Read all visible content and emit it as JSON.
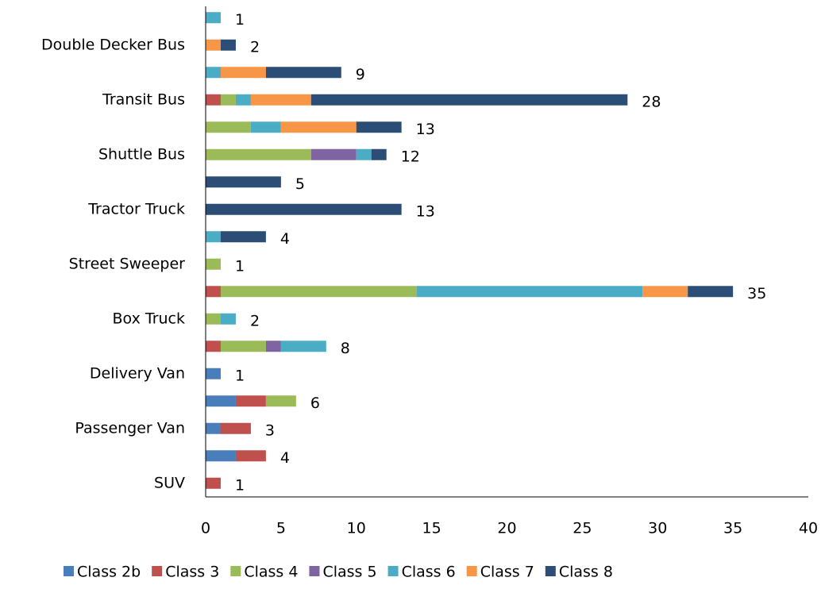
{
  "chart_data": {
    "type": "stacked_bar_horizontal",
    "categories": [
      "SUV",
      null,
      "Passenger Van",
      null,
      "Delivery Van",
      null,
      "Box Truck",
      null,
      "Street Sweeper",
      null,
      "Tractor Truck",
      null,
      "Shuttle Bus",
      null,
      "Transit Bus",
      null,
      "Double Decker Bus",
      null
    ],
    "series": [
      {
        "name": "Class 2b",
        "color": "#4a7ebb",
        "values": [
          0,
          2,
          1,
          2,
          1,
          0,
          0,
          0,
          0,
          0,
          0,
          0,
          0,
          0,
          0,
          0,
          0,
          0
        ]
      },
      {
        "name": "Class 3",
        "color": "#c0504d",
        "values": [
          1,
          2,
          2,
          2,
          0,
          1,
          0,
          1,
          0,
          0,
          0,
          0,
          0,
          0,
          1,
          0,
          0,
          0
        ]
      },
      {
        "name": "Class 4",
        "color": "#9bbb59",
        "values": [
          0,
          0,
          0,
          2,
          0,
          3,
          1,
          13,
          1,
          0,
          0,
          0,
          7,
          3,
          1,
          0,
          0,
          0
        ]
      },
      {
        "name": "Class 5",
        "color": "#8064a2",
        "values": [
          0,
          0,
          0,
          0,
          0,
          1,
          0,
          0,
          0,
          0,
          0,
          0,
          3,
          0,
          0,
          0,
          0,
          0
        ]
      },
      {
        "name": "Class 6",
        "color": "#4bacc6",
        "values": [
          0,
          0,
          0,
          0,
          0,
          3,
          1,
          15,
          0,
          1,
          0,
          0,
          1,
          2,
          1,
          1,
          0,
          1
        ]
      },
      {
        "name": "Class 7",
        "color": "#f79646",
        "values": [
          0,
          0,
          0,
          0,
          0,
          0,
          0,
          3,
          0,
          0,
          0,
          0,
          0,
          5,
          4,
          3,
          1,
          0
        ]
      },
      {
        "name": "Class 8",
        "color": "#2c4d75",
        "values": [
          0,
          0,
          0,
          0,
          0,
          0,
          0,
          3,
          0,
          3,
          13,
          5,
          1,
          3,
          21,
          5,
          1,
          0
        ]
      }
    ],
    "totals": [
      1,
      4,
      3,
      6,
      1,
      8,
      2,
      35,
      1,
      4,
      13,
      5,
      12,
      13,
      28,
      9,
      2,
      1
    ],
    "xlim": [
      0,
      40
    ],
    "xticks": [
      0,
      5,
      10,
      15,
      20,
      25,
      30,
      35,
      40
    ],
    "legend": "bottom"
  }
}
